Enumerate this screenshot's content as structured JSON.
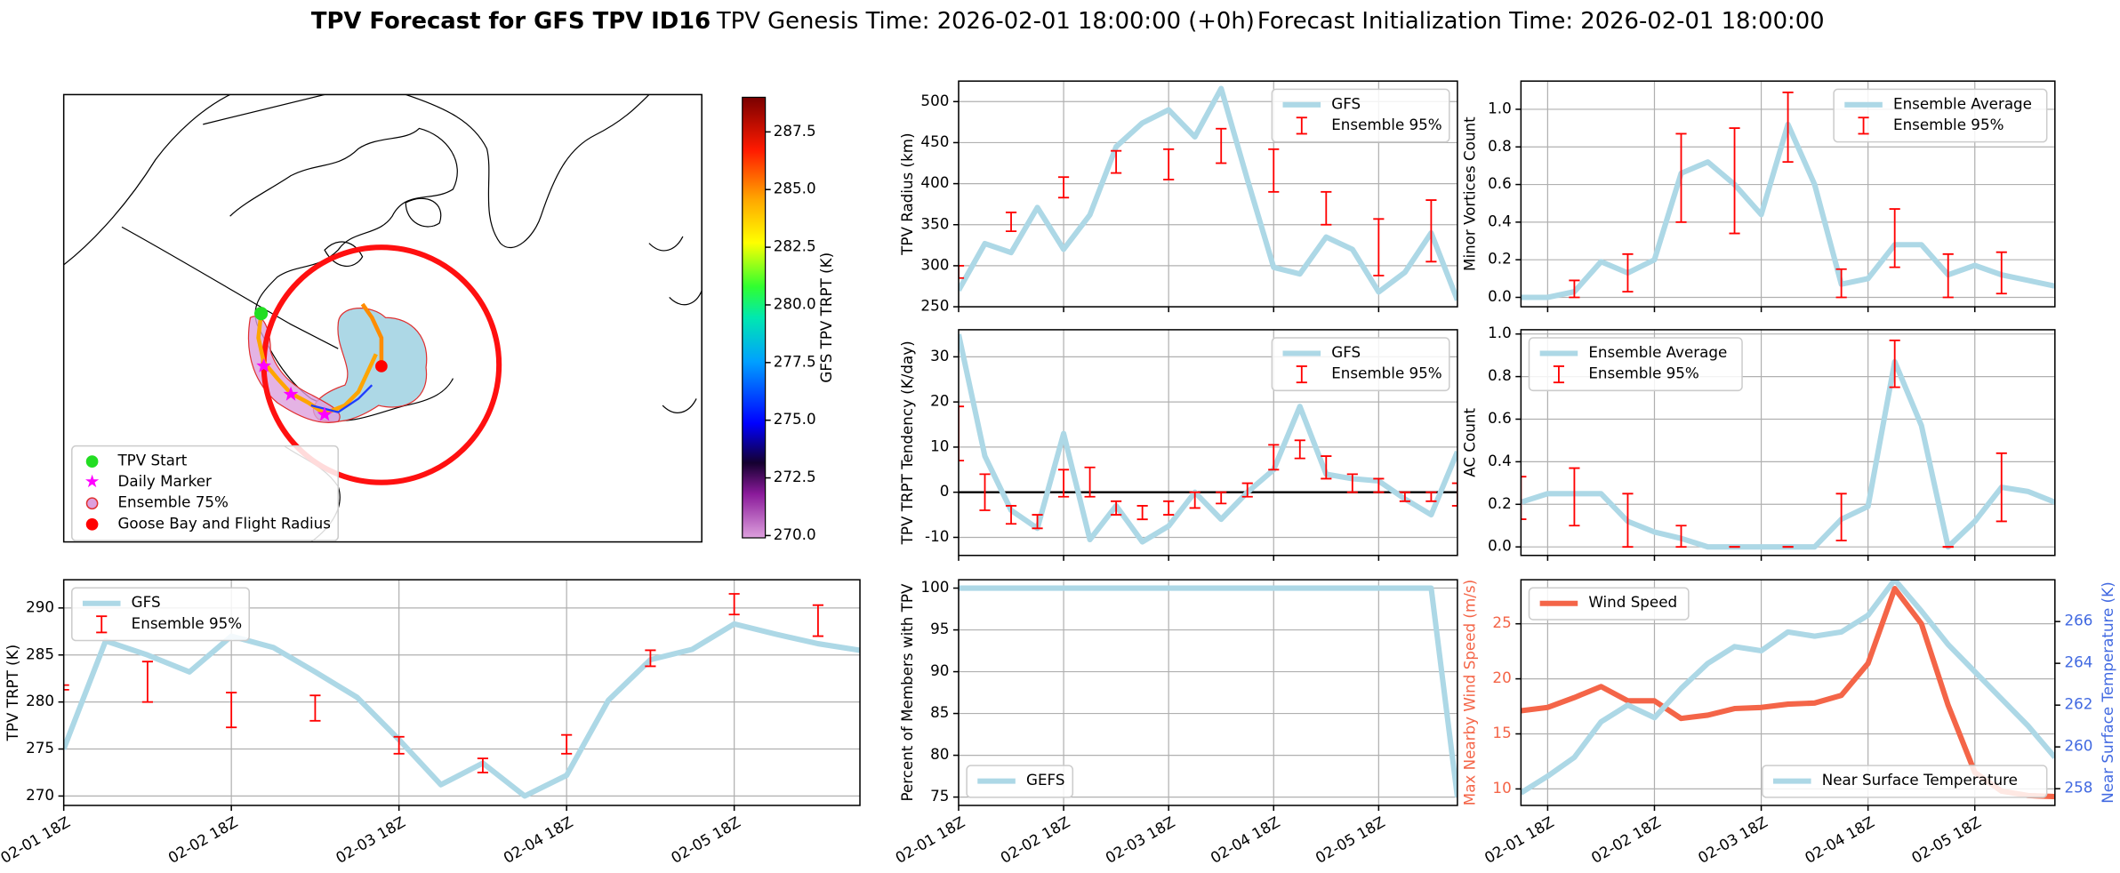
{
  "header": {
    "title": "TPV Forecast for GFS TPV ID16",
    "genesis": "TPV Genesis Time: 2026-02-01 18:00:00 (+0h)",
    "init": "Forecast Initialization Time: 2026-02-01 18:00:00"
  },
  "chart_data": [
    {
      "type": "map",
      "legend": [
        "TPV Start",
        "Daily Marker",
        "Ensemble 75%",
        "Goose Bay and Flight Radius"
      ],
      "colorbar_label": "GFS TPV TRPT (K)",
      "clim": [
        269.9,
        289.0
      ],
      "cticks": [
        {
          "value": 270,
          "label": "270.0"
        },
        {
          "value": 272.5,
          "label": "272.5"
        },
        {
          "value": 275,
          "label": "275.0"
        },
        {
          "value": 277.5,
          "label": "277.5"
        },
        {
          "value": 280,
          "label": "280.0"
        },
        {
          "value": 282.5,
          "label": "282.5"
        },
        {
          "value": 285,
          "label": "285.0"
        },
        {
          "value": 287.5,
          "label": "287.5"
        }
      ]
    },
    {
      "type": "line",
      "ylabel": "TPV TRPT (K)",
      "ylim": [
        269,
        293
      ],
      "yticks": [
        270,
        275,
        280,
        285,
        290
      ],
      "grid": true,
      "legend": "upper left",
      "categories": [
        "02-01 18Z",
        null,
        null,
        null,
        "02-02 18Z",
        null,
        null,
        null,
        "02-03 18Z",
        null,
        null,
        null,
        "02-04 18Z",
        null,
        null,
        null,
        "02-05 18Z",
        null,
        null,
        null
      ],
      "series": [
        {
          "name": "GFS",
          "color": "#add8e6",
          "values": [
            275,
            286.5,
            285,
            283.2,
            287,
            285.8,
            283.2,
            280.5,
            276,
            271.2,
            273.5,
            270,
            272.2,
            280.2,
            284.5,
            285.6,
            288.3,
            287.2,
            286.2,
            285.5
          ]
        }
      ],
      "errorbars": {
        "name": "Ensemble 95%",
        "color": "#ff0000",
        "low": [
          281.3,
          null,
          280,
          null,
          277.3,
          null,
          278,
          null,
          274.5,
          null,
          272.5,
          null,
          274.5,
          null,
          283.8,
          null,
          289.3,
          null,
          287,
          null
        ],
        "high": [
          281.8,
          null,
          284.3,
          null,
          281,
          null,
          280.7,
          null,
          276.3,
          null,
          274,
          null,
          276.5,
          null,
          285.5,
          null,
          291.5,
          null,
          290.3,
          null
        ]
      }
    },
    {
      "type": "line",
      "ylabel": "TPV Radius (km)",
      "ylim": [
        250,
        525
      ],
      "yticks": [
        250,
        300,
        350,
        400,
        450,
        500
      ],
      "grid": true,
      "legend": "upper right",
      "series": [
        {
          "name": "GFS",
          "color": "#add8e6",
          "values": [
            270,
            327,
            316,
            371,
            320,
            362,
            445,
            474,
            490,
            457,
            516,
            405,
            298,
            290,
            335,
            320,
            268,
            292,
            340,
            258
          ]
        }
      ],
      "errorbars": {
        "name": "Ensemble 95%",
        "color": "#ff0000",
        "low": [
          285,
          null,
          342,
          null,
          383,
          null,
          413,
          null,
          405,
          null,
          425,
          null,
          390,
          null,
          350,
          null,
          288,
          null,
          305,
          null
        ],
        "high": [
          300,
          null,
          365,
          null,
          408,
          null,
          440,
          null,
          442,
          null,
          467,
          null,
          442,
          null,
          390,
          null,
          357,
          null,
          380,
          null
        ]
      }
    },
    {
      "type": "line",
      "ylabel": "TPV TRPT Tendency (K/day)",
      "ylim": [
        -14,
        36
      ],
      "yticks": [
        -10,
        0,
        10,
        20,
        30
      ],
      "grid": true,
      "legend": "upper right",
      "reference_line": 0,
      "series": [
        {
          "name": "GFS",
          "color": "#add8e6",
          "values": [
            35,
            8,
            -4,
            -8,
            13,
            -10.5,
            -3,
            -11,
            -7.5,
            0,
            -6,
            0,
            5,
            19,
            4,
            3,
            2.5,
            -1.5,
            -5,
            9
          ]
        }
      ],
      "errorbars": {
        "name": "Ensemble 95%",
        "color": "#ff0000",
        "low": [
          7,
          -4,
          -7,
          -8,
          -1,
          -1,
          -5,
          -6,
          -5,
          -3.5,
          -2.5,
          -1,
          5,
          7.5,
          3,
          0,
          0,
          -2,
          -2,
          -3
        ],
        "high": [
          19,
          4,
          -3,
          -5,
          5,
          5.5,
          -2,
          -3,
          -2,
          0,
          0,
          2,
          10.5,
          11.5,
          8,
          4,
          3,
          0,
          0,
          2
        ]
      }
    },
    {
      "type": "line",
      "ylabel": "Percent of Members with TPV",
      "ylim": [
        74,
        101
      ],
      "yticks": [
        75,
        80,
        85,
        90,
        95,
        100
      ],
      "grid": true,
      "legend": "lower left",
      "categories": [
        "02-01 18Z",
        null,
        null,
        null,
        "02-02 18Z",
        null,
        null,
        null,
        "02-03 18Z",
        null,
        null,
        null,
        "02-04 18Z",
        null,
        null,
        null,
        "02-05 18Z",
        null,
        null,
        null
      ],
      "series": [
        {
          "name": "GEFS",
          "color": "#add8e6",
          "values": [
            100,
            100,
            100,
            100,
            100,
            100,
            100,
            100,
            100,
            100,
            100,
            100,
            100,
            100,
            100,
            100,
            100,
            100,
            100,
            75
          ]
        }
      ]
    },
    {
      "type": "line",
      "ylabel": "Minor Vortices Count",
      "ylim": [
        -0.05,
        1.15
      ],
      "grid": true,
      "legend": "upper right",
      "yticks": [
        {
          "value": 0,
          "label": "0.0"
        },
        {
          "value": 0.2,
          "label": "0.2"
        },
        {
          "value": 0.4,
          "label": "0.4"
        },
        {
          "value": 0.6,
          "label": "0.6"
        },
        {
          "value": 0.8,
          "label": "0.8"
        },
        {
          "value": 1,
          "label": "1.0"
        }
      ],
      "series": [
        {
          "name": "Ensemble Average",
          "color": "#add8e6",
          "values": [
            0,
            0,
            0.03,
            0.19,
            0.13,
            0.2,
            0.66,
            0.72,
            0.6,
            0.44,
            0.92,
            0.6,
            0.07,
            0.1,
            0.28,
            0.28,
            0.12,
            0.17,
            0.12,
            0.09,
            0.06
          ]
        }
      ],
      "errorbars": {
        "name": "Ensemble 95%",
        "color": "#ff0000",
        "low": [
          null,
          null,
          0,
          null,
          0.03,
          null,
          0.4,
          null,
          0.34,
          null,
          0.72,
          null,
          0,
          null,
          0.16,
          null,
          0,
          null,
          0.02,
          null,
          null
        ],
        "high": [
          null,
          null,
          0.09,
          null,
          0.23,
          null,
          0.87,
          null,
          0.9,
          null,
          1.09,
          null,
          0.15,
          null,
          0.47,
          null,
          0.23,
          null,
          0.24,
          null,
          null
        ]
      }
    },
    {
      "type": "line",
      "ylabel": "AC Count",
      "ylim": [
        -0.04,
        1.02
      ],
      "grid": true,
      "legend": "upper left",
      "yticks": [
        {
          "value": 0,
          "label": "0.0"
        },
        {
          "value": 0.2,
          "label": "0.2"
        },
        {
          "value": 0.4,
          "label": "0.4"
        },
        {
          "value": 0.6,
          "label": "0.6"
        },
        {
          "value": 0.8,
          "label": "0.8"
        },
        {
          "value": 1,
          "label": "1.0"
        }
      ],
      "series": [
        {
          "name": "Ensemble Average",
          "color": "#add8e6",
          "values": [
            0.21,
            0.25,
            0.25,
            0.25,
            0.12,
            0.07,
            0.04,
            0,
            0,
            0,
            0,
            0,
            0.13,
            0.19,
            0.87,
            0.57,
            0,
            0.12,
            0.28,
            0.26,
            0.21
          ]
        }
      ],
      "errorbars": {
        "name": "Ensemble 95%",
        "color": "#ff0000",
        "low": [
          0.13,
          null,
          0.1,
          null,
          0,
          null,
          0,
          null,
          0,
          null,
          0,
          null,
          0.03,
          null,
          0.75,
          null,
          0,
          null,
          0.12,
          null,
          null
        ],
        "high": [
          0.33,
          null,
          0.37,
          null,
          0.25,
          null,
          0.1,
          null,
          0,
          null,
          0,
          null,
          0.25,
          null,
          0.97,
          null,
          0,
          null,
          0.44,
          null,
          null
        ]
      }
    },
    {
      "type": "line",
      "ylabel": "Max Nearby Wind Speed (m/s)",
      "ylabel_color": "#f46548",
      "ylim": [
        8.5,
        29
      ],
      "yticks": [
        10,
        15,
        20,
        25
      ],
      "grid": true,
      "y2label": "Near Surface Temperature (K)",
      "y2label_color": "#4169e1",
      "y2lim": [
        257.2,
        268
      ],
      "y2ticks": [
        258,
        260,
        262,
        264,
        266
      ],
      "categories": [
        null,
        "02-01 18Z",
        null,
        null,
        null,
        "02-02 18Z",
        null,
        null,
        null,
        "02-03 18Z",
        null,
        null,
        null,
        "02-04 18Z",
        null,
        null,
        null,
        "02-05 18Z",
        null,
        null,
        null
      ],
      "series": [
        {
          "name": "Wind Speed",
          "color": "#f46548",
          "legend": "upper left",
          "values": [
            17.1,
            17.4,
            18.3,
            19.3,
            18.0,
            18.0,
            16.4,
            16.7,
            17.3,
            17.4,
            17.7,
            17.8,
            18.5,
            21.4,
            28.2,
            25,
            17.6,
            11.5,
            9.8,
            9.4,
            9.3
          ]
        },
        {
          "name": "Near Surface Temperature",
          "color": "#add8e6",
          "axis": "y2",
          "legend": "lower right",
          "values": [
            257.8,
            258.6,
            259.5,
            261.2,
            262.0,
            261.4,
            262.8,
            264.0,
            264.8,
            264.6,
            265.5,
            265.3,
            265.5,
            266.3,
            268.0,
            266.5,
            264.9,
            263.6,
            262.3,
            261.0,
            259.5
          ]
        }
      ]
    }
  ]
}
